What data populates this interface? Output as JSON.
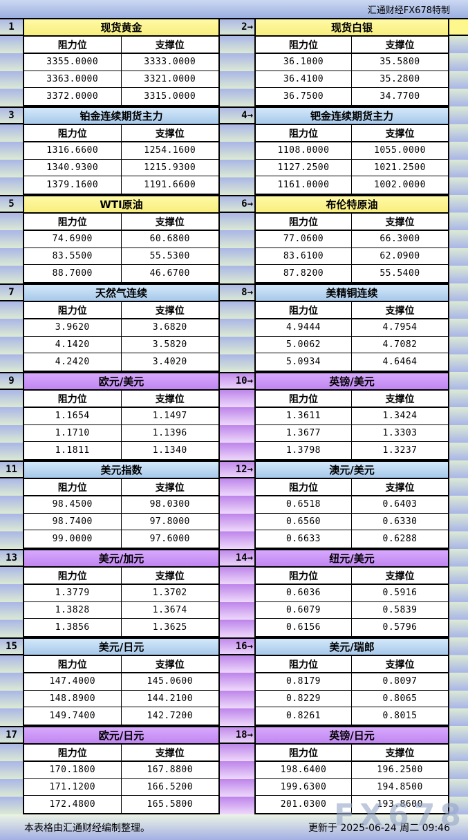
{
  "header": {
    "brand": "汇通财经FX678特制"
  },
  "labels": {
    "resistance": "阻力位",
    "support": "支撑位"
  },
  "footer": {
    "note": "本表格由汇通财经编制整理。",
    "updated": "更新于 2025-06-24 周二 09:46",
    "watermark": "FX678"
  },
  "colors": {
    "title_yellow": "#f8ee7d",
    "title_blue": "#a6c8ea",
    "title_purple": "#bf86f0",
    "stripe_blue": "#a9b5e7",
    "stripe_green": "#dcead4",
    "stripe_purple": "#bd84ea"
  },
  "panels": [
    {
      "num": "1",
      "title": "现货黄金",
      "theme": "yellow",
      "rows": [
        [
          "3355.0000",
          "3333.0000"
        ],
        [
          "3363.0000",
          "3321.0000"
        ],
        [
          "3372.0000",
          "3315.0000"
        ]
      ]
    },
    {
      "num": "2→",
      "title": "现货白银",
      "theme": "yellow",
      "rows": [
        [
          "36.1000",
          "35.5800"
        ],
        [
          "36.4100",
          "35.2800"
        ],
        [
          "36.7500",
          "34.7700"
        ]
      ]
    },
    {
      "num": "3",
      "title": "铂金连续期货主力",
      "theme": "blue",
      "rows": [
        [
          "1316.6600",
          "1254.1600"
        ],
        [
          "1340.9300",
          "1215.9300"
        ],
        [
          "1379.1600",
          "1191.6600"
        ]
      ]
    },
    {
      "num": "4→",
      "title": "钯金连续期货主力",
      "theme": "blue",
      "rows": [
        [
          "1108.0000",
          "1055.0000"
        ],
        [
          "1127.2500",
          "1021.2500"
        ],
        [
          "1161.0000",
          "1002.0000"
        ]
      ]
    },
    {
      "num": "5",
      "title": "WTI原油",
      "theme": "yellow",
      "rows": [
        [
          "74.6900",
          "60.6800"
        ],
        [
          "83.5500",
          "55.5300"
        ],
        [
          "88.7000",
          "46.6700"
        ]
      ]
    },
    {
      "num": "6→",
      "title": "布伦特原油",
      "theme": "yellow",
      "rows": [
        [
          "77.0600",
          "66.3000"
        ],
        [
          "83.6100",
          "62.0900"
        ],
        [
          "87.8200",
          "55.5400"
        ]
      ]
    },
    {
      "num": "7",
      "title": "天然气连续",
      "theme": "blue",
      "rows": [
        [
          "3.9620",
          "3.6820"
        ],
        [
          "4.1420",
          "3.5820"
        ],
        [
          "4.2420",
          "3.4020"
        ]
      ]
    },
    {
      "num": "8→",
      "title": "美精铜连续",
      "theme": "blue",
      "rows": [
        [
          "4.9444",
          "4.7954"
        ],
        [
          "5.0062",
          "4.7082"
        ],
        [
          "5.0934",
          "4.6464"
        ]
      ]
    },
    {
      "num": "9",
      "title": "欧元/美元",
      "theme": "purple",
      "rows": [
        [
          "1.1654",
          "1.1497"
        ],
        [
          "1.1710",
          "1.1396"
        ],
        [
          "1.1811",
          "1.1340"
        ]
      ]
    },
    {
      "num": "10→",
      "title": "英镑/美元",
      "theme": "purple",
      "rows": [
        [
          "1.3611",
          "1.3424"
        ],
        [
          "1.3677",
          "1.3303"
        ],
        [
          "1.3798",
          "1.3237"
        ]
      ]
    },
    {
      "num": "11",
      "title": "美元指数",
      "theme": "blue",
      "rows": [
        [
          "98.4500",
          "98.0300"
        ],
        [
          "98.7400",
          "97.8000"
        ],
        [
          "99.0000",
          "97.6000"
        ]
      ]
    },
    {
      "num": "12→",
      "title": "澳元/美元",
      "theme": "blue",
      "rows": [
        [
          "0.6518",
          "0.6403"
        ],
        [
          "0.6560",
          "0.6330"
        ],
        [
          "0.6633",
          "0.6288"
        ]
      ]
    },
    {
      "num": "13",
      "title": "美元/加元",
      "theme": "purple",
      "rows": [
        [
          "1.3779",
          "1.3702"
        ],
        [
          "1.3828",
          "1.3674"
        ],
        [
          "1.3856",
          "1.3625"
        ]
      ]
    },
    {
      "num": "14→",
      "title": "纽元/美元",
      "theme": "purple",
      "rows": [
        [
          "0.6036",
          "0.5916"
        ],
        [
          "0.6079",
          "0.5839"
        ],
        [
          "0.6156",
          "0.5796"
        ]
      ]
    },
    {
      "num": "15",
      "title": "美元/日元",
      "theme": "blue",
      "rows": [
        [
          "147.4000",
          "145.0600"
        ],
        [
          "148.8900",
          "144.2100"
        ],
        [
          "149.7400",
          "142.7200"
        ]
      ]
    },
    {
      "num": "16→",
      "title": "美元/瑞郎",
      "theme": "blue",
      "rows": [
        [
          "0.8179",
          "0.8097"
        ],
        [
          "0.8229",
          "0.8065"
        ],
        [
          "0.8261",
          "0.8015"
        ]
      ]
    },
    {
      "num": "17",
      "title": "欧元/日元",
      "theme": "purple",
      "rows": [
        [
          "170.1800",
          "167.8800"
        ],
        [
          "171.1200",
          "166.5200"
        ],
        [
          "172.4800",
          "165.5800"
        ]
      ]
    },
    {
      "num": "18→",
      "title": "英镑/日元",
      "theme": "purple",
      "rows": [
        [
          "198.6400",
          "196.2500"
        ],
        [
          "199.6300",
          "194.8500"
        ],
        [
          "201.0300",
          "193.8600"
        ]
      ]
    }
  ]
}
